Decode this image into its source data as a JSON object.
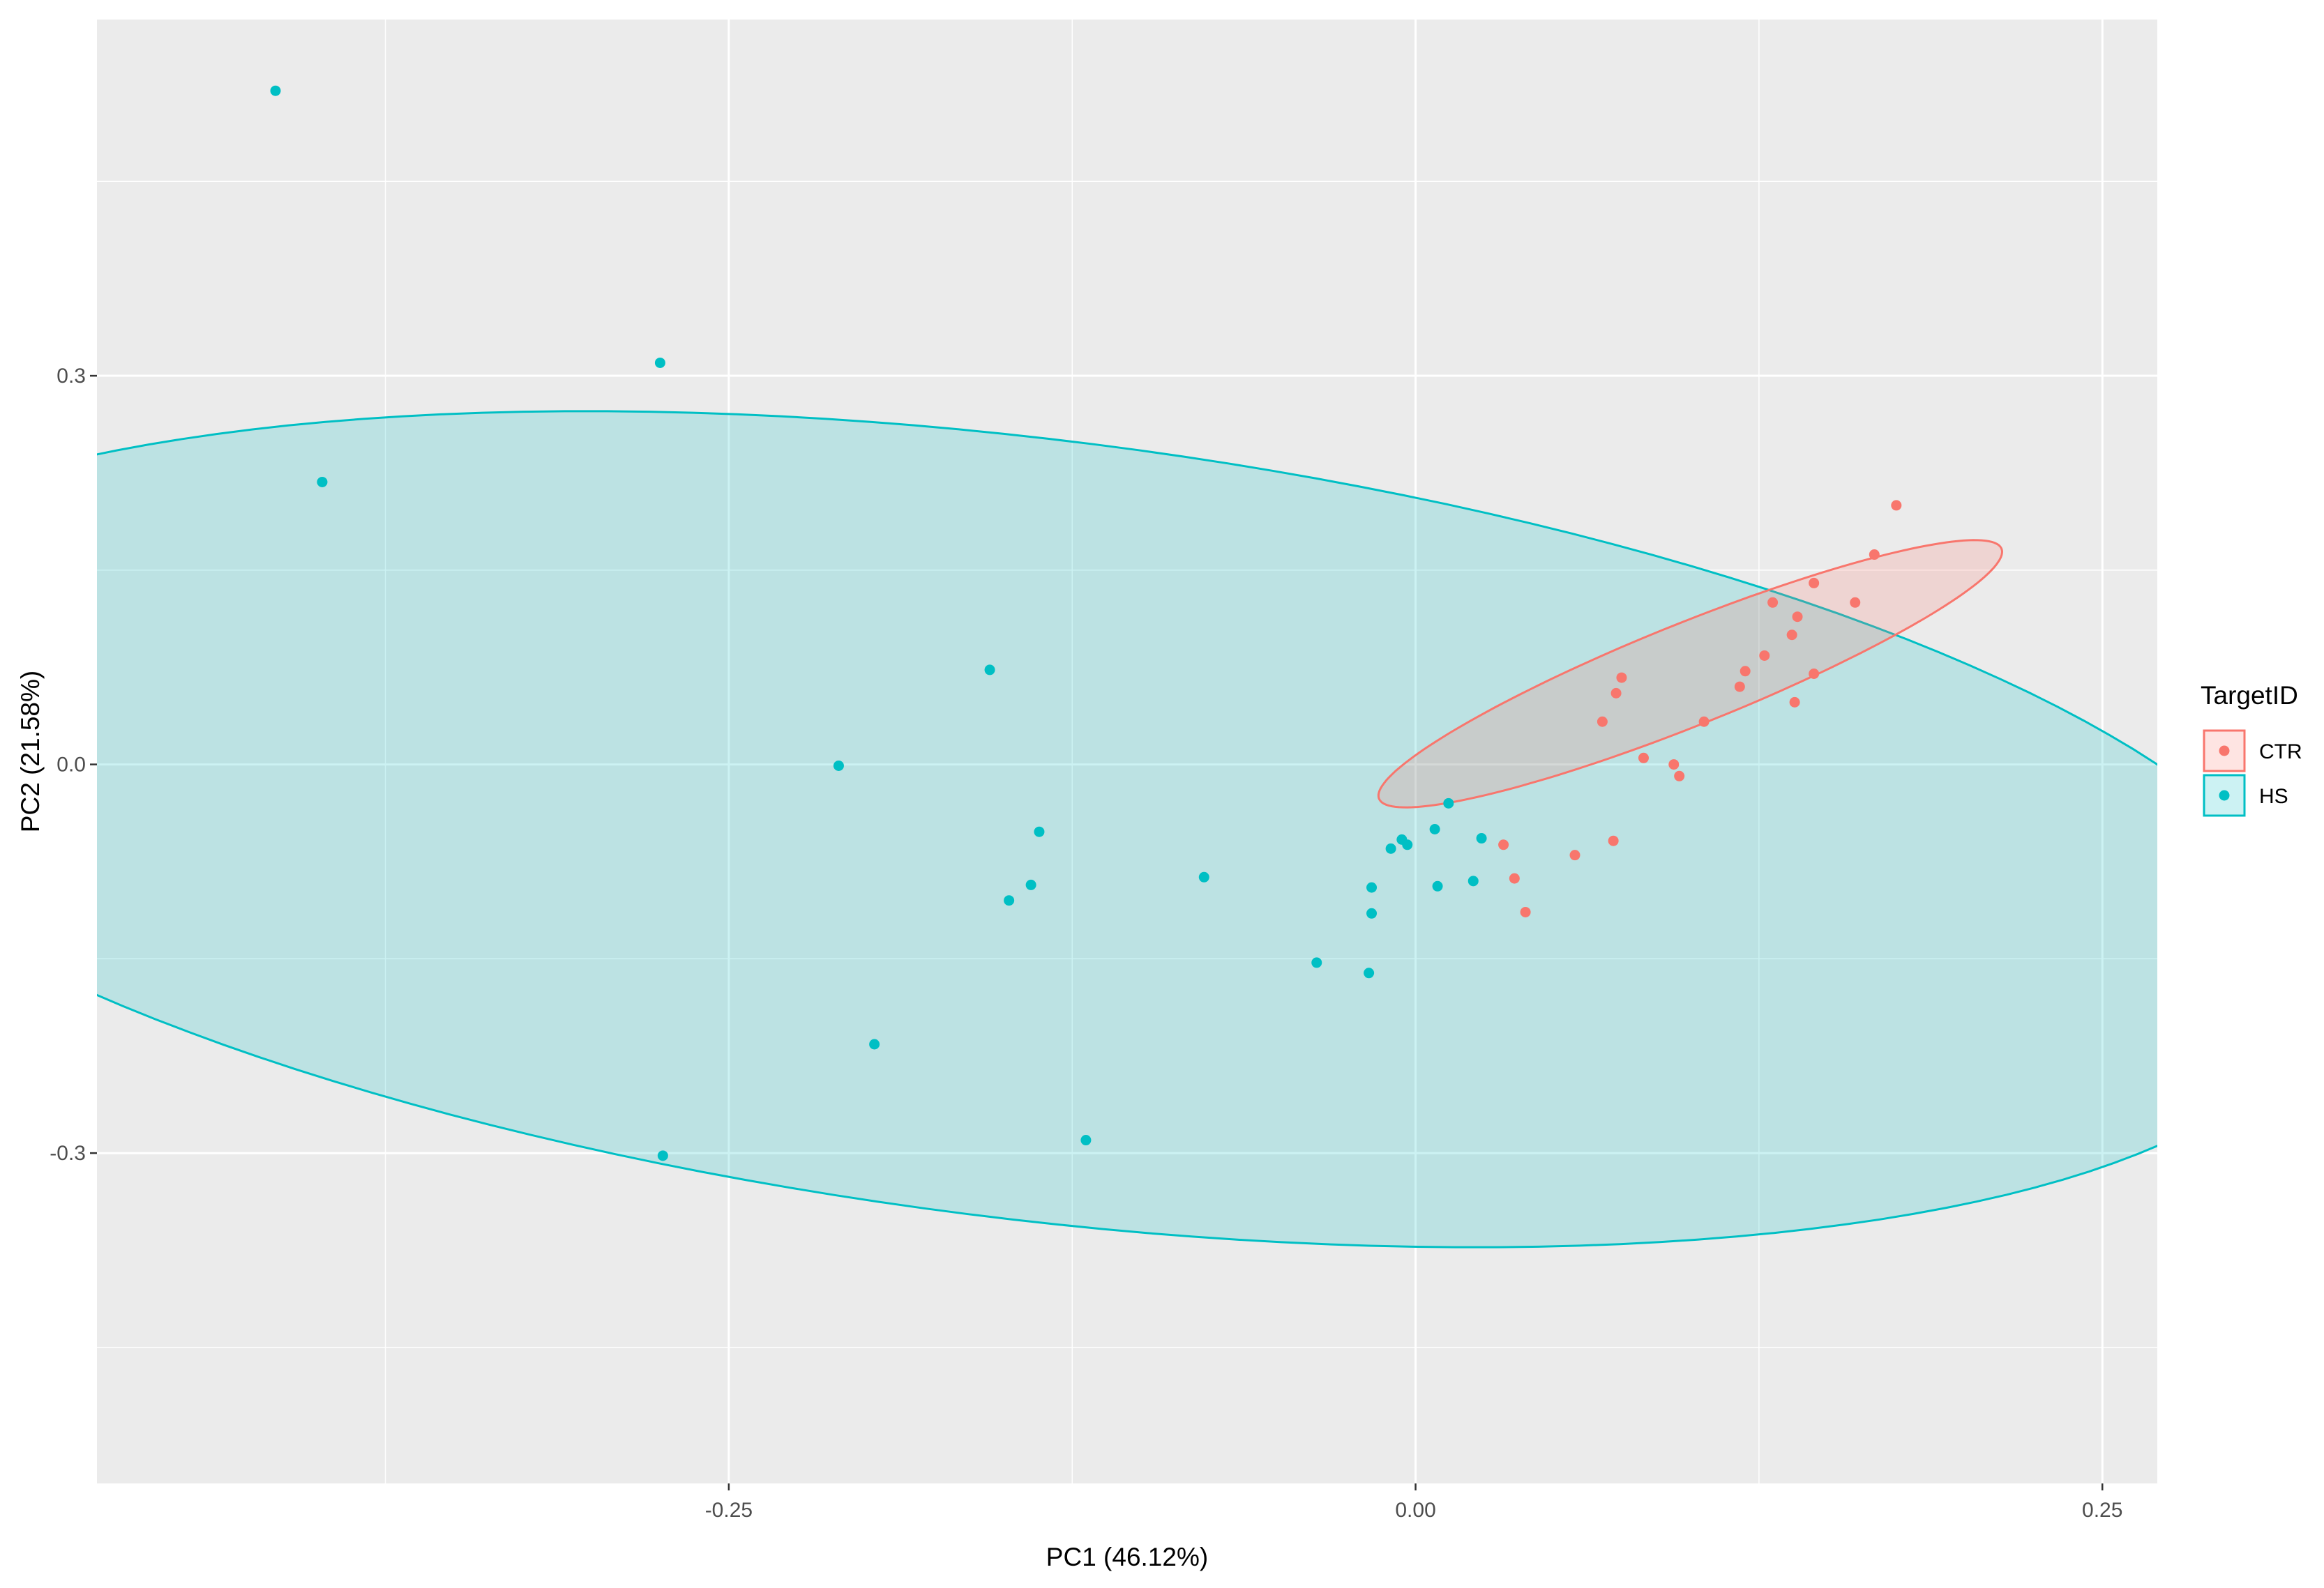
{
  "chart_data": {
    "type": "scatter",
    "title": "",
    "xlabel": "PC1 (46.12%)",
    "ylabel": "PC2 (21.58%)",
    "xlim": [
      -0.48,
      0.27
    ],
    "ylim": [
      -0.555,
      0.575
    ],
    "x_ticks": [
      -0.25,
      0.0,
      0.25
    ],
    "x_tick_labels": [
      "-0.25",
      "0.00",
      "0.25"
    ],
    "y_ticks": [
      -0.3,
      0.0,
      0.3
    ],
    "y_tick_labels": [
      "-0.3",
      "0.0",
      "0.3"
    ],
    "grid": true,
    "legend": {
      "title": "TargetID",
      "position": "right"
    },
    "series": [
      {
        "name": "CTR",
        "color": "#F8766D",
        "points": [
          [
            0.175,
            0.2
          ],
          [
            0.167,
            0.162
          ],
          [
            0.145,
            0.14
          ],
          [
            0.16,
            0.125
          ],
          [
            0.13,
            0.125
          ],
          [
            0.139,
            0.114
          ],
          [
            0.137,
            0.1
          ],
          [
            0.127,
            0.084
          ],
          [
            0.145,
            0.07
          ],
          [
            0.12,
            0.072
          ],
          [
            0.118,
            0.06
          ],
          [
            0.138,
            0.048
          ],
          [
            0.075,
            0.067
          ],
          [
            0.073,
            0.055
          ],
          [
            0.068,
            0.033
          ],
          [
            0.105,
            0.033
          ],
          [
            0.083,
            0.005
          ],
          [
            0.094,
            0.0
          ],
          [
            0.096,
            -0.009
          ],
          [
            0.072,
            -0.059
          ],
          [
            0.058,
            -0.07
          ],
          [
            0.032,
            -0.062
          ],
          [
            0.036,
            -0.088
          ],
          [
            0.04,
            -0.114
          ]
        ]
      },
      {
        "name": "HS",
        "color": "#00BFC4",
        "points": [
          [
            -0.415,
            0.52
          ],
          [
            -0.275,
            0.31
          ],
          [
            -0.398,
            0.218
          ],
          [
            -0.155,
            0.073
          ],
          [
            -0.21,
            -0.001
          ],
          [
            -0.137,
            -0.052
          ],
          [
            -0.14,
            -0.093
          ],
          [
            -0.148,
            -0.105
          ],
          [
            -0.077,
            -0.087
          ],
          [
            -0.197,
            -0.216
          ],
          [
            -0.274,
            -0.302
          ],
          [
            -0.12,
            -0.29
          ],
          [
            -0.036,
            -0.153
          ],
          [
            -0.017,
            -0.161
          ],
          [
            -0.016,
            -0.095
          ],
          [
            -0.016,
            -0.115
          ],
          [
            -0.009,
            -0.065
          ],
          [
            -0.005,
            -0.058
          ],
          [
            -0.003,
            -0.062
          ],
          [
            0.007,
            -0.05
          ],
          [
            0.012,
            -0.03
          ],
          [
            0.024,
            -0.057
          ],
          [
            0.008,
            -0.094
          ],
          [
            0.021,
            -0.09
          ]
        ]
      }
    ],
    "ellipses": [
      {
        "series": "HS",
        "center": [
          -0.14,
          -0.05
        ],
        "rx": 0.49,
        "ry": 0.29,
        "rotation_deg": -21
      },
      {
        "series": "CTR",
        "center": [
          0.1,
          0.07
        ],
        "rx": 0.15,
        "ry": 0.032,
        "rotation_deg": 42
      }
    ]
  }
}
